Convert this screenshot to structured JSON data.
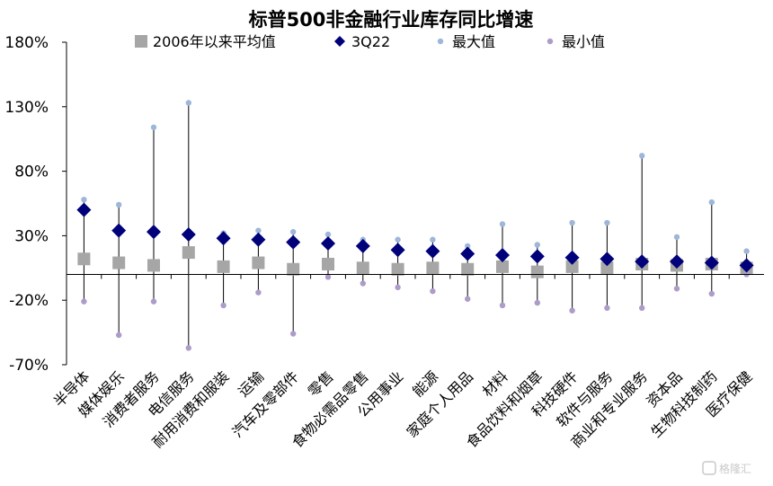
{
  "chart_data": {
    "type": "scatter",
    "title": "标普500非金融行业库存同比增速",
    "yticks": [
      "180%",
      "130%",
      "80%",
      "30%",
      "-20%",
      "-70%"
    ],
    "ylim": [
      -70,
      180
    ],
    "categories": [
      "半导体",
      "媒体娱乐",
      "消费者服务",
      "电信服务",
      "耐用消费和服装",
      "运输",
      "汽车及零部件",
      "零售",
      "食物必需品零售",
      "公用事业",
      "能源",
      "家庭个人用品",
      "材料",
      "食品饮料和烟草",
      "科技硬件",
      "软件与服务",
      "商业和专业服务",
      "资本品",
      "生物科技制药",
      "医疗保健"
    ],
    "series": [
      {
        "name": "2006年以来平均值",
        "marker": "square",
        "color": "#a6a6a6",
        "values": [
          12,
          9,
          7,
          17,
          6,
          9,
          4,
          8,
          5,
          4,
          5,
          4,
          6,
          2,
          6,
          5,
          8,
          7,
          8,
          5
        ]
      },
      {
        "name": "3Q22",
        "marker": "diamond",
        "color": "#00007a",
        "values": [
          50,
          34,
          33,
          31,
          28,
          27,
          25,
          24,
          22,
          19,
          18,
          16,
          15,
          14,
          13,
          12,
          10,
          10,
          9,
          7
        ]
      },
      {
        "name": "最大值",
        "marker": "dot",
        "color": "#9db6d9",
        "values": [
          58,
          54,
          114,
          133,
          32,
          34,
          33,
          31,
          27,
          27,
          27,
          22,
          39,
          23,
          40,
          40,
          92,
          29,
          56,
          18
        ]
      },
      {
        "name": "最小值",
        "marker": "dot",
        "color": "#ad9bc9",
        "values": [
          -21,
          -47,
          -21,
          -57,
          -24,
          -14,
          -46,
          -2,
          -7,
          -10,
          -13,
          -19,
          -24,
          -22,
          -28,
          -26,
          -26,
          -11,
          -15,
          0
        ]
      }
    ],
    "legend_position": "top",
    "grid": false
  },
  "watermark": "格隆汇"
}
